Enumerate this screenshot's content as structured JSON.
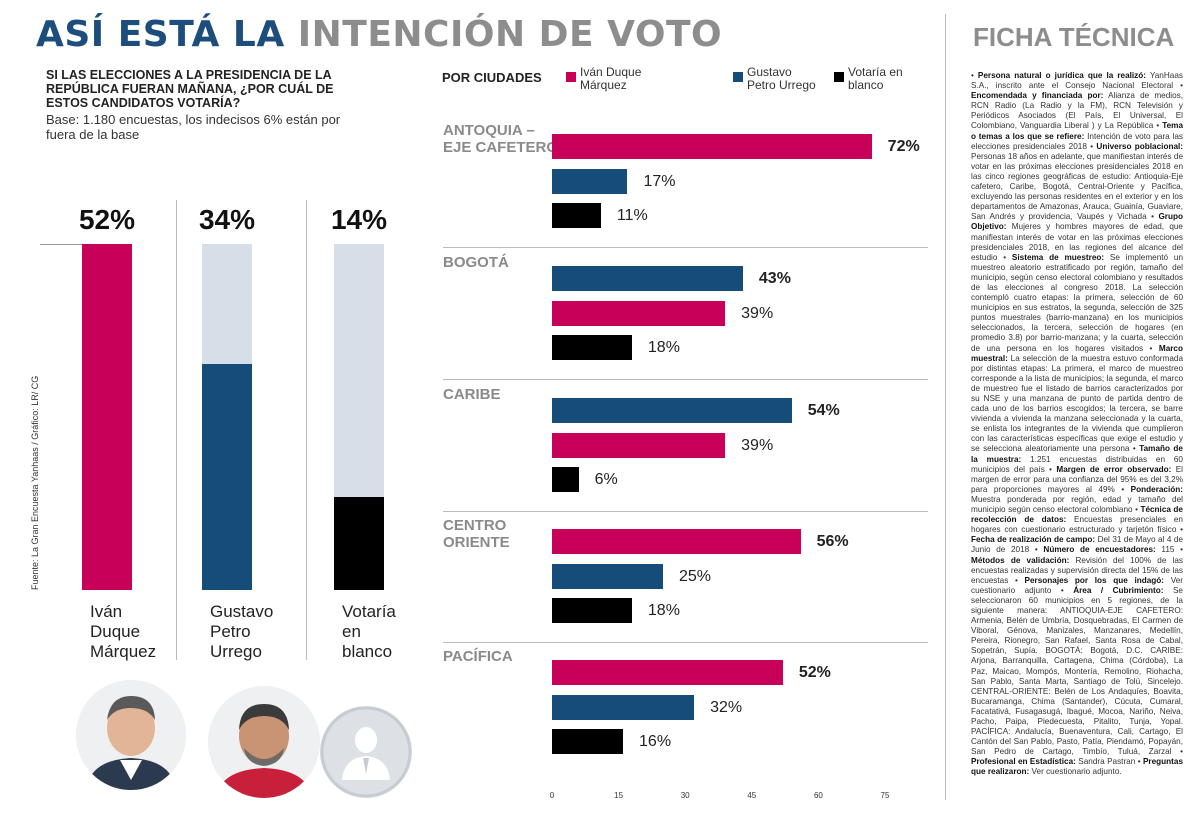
{
  "title": {
    "part1": "ASÍ ESTÁ LA",
    "part2": "INTENCIÓN DE VOTO"
  },
  "question": "SI LAS ELECCIONES A LA PRESIDENCIA DE LA REPÚBLICA FUERAN MAÑANA, ¿POR CUÁL DE ESTOS CANDIDATOS VOTARÍA?",
  "base": "Base: 1.180 encuestas, los indecisos 6% están por fuera de la base",
  "source": "Fuente: La Gran Encuesta Yanhaas / Gráfico: LR/ CG",
  "colors": {
    "duque": "#c8005a",
    "petro": "#154c79",
    "blanco": "#000000",
    "track": "#d8dee7"
  },
  "chart_data": [
    {
      "type": "bar",
      "title": "SI LAS ELECCIONES A LA PRESIDENCIA DE LA REPÚBLICA FUERAN MAÑANA, ¿POR CUÁL DE ESTOS CANDIDATOS VOTARÍA?",
      "categories": [
        "Iván Duque Márquez",
        "Gustavo Petro Urrego",
        "Votaría en blanco"
      ],
      "values": [
        52,
        34,
        14
      ],
      "labels": [
        "52%",
        "34%",
        "14%"
      ],
      "label_lines": [
        [
          "Iván",
          "Duque",
          "Márquez"
        ],
        [
          "Gustavo",
          "Petro",
          "Urrego"
        ],
        [
          "Votaría",
          "en",
          "blanco"
        ]
      ],
      "ylim": [
        0,
        52
      ]
    },
    {
      "type": "bar",
      "title": "POR CIUDADES",
      "orientation": "horizontal",
      "legend": [
        "Iván Duque Márquez",
        "Gustavo Petro Urrego",
        "Votaría en blanco"
      ],
      "legend_lines": [
        [
          "Iván Duque",
          "Márquez"
        ],
        [
          "Gustavo",
          "Petro Urrego"
        ],
        [
          "Votaría en",
          "blanco"
        ]
      ],
      "xlim": [
        0,
        75
      ],
      "xticks": [
        "0",
        "15",
        "30",
        "45",
        "60",
        "75"
      ],
      "regions": [
        {
          "name_lines": [
            "ANTOQUIA –",
            "EJE CAFETERO"
          ],
          "bars": [
            {
              "series": "duque",
              "value": 72,
              "label": "72%",
              "bold": true
            },
            {
              "series": "petro",
              "value": 17,
              "label": "17%",
              "bold": false
            },
            {
              "series": "blanco",
              "value": 11,
              "label": "11%",
              "bold": false
            }
          ]
        },
        {
          "name_lines": [
            "BOGOTÁ"
          ],
          "bars": [
            {
              "series": "petro",
              "value": 43,
              "label": "43%",
              "bold": true
            },
            {
              "series": "duque",
              "value": 39,
              "label": "39%",
              "bold": false
            },
            {
              "series": "blanco",
              "value": 18,
              "label": "18%",
              "bold": false
            }
          ]
        },
        {
          "name_lines": [
            "CARIBE"
          ],
          "bars": [
            {
              "series": "petro",
              "value": 54,
              "label": "54%",
              "bold": true
            },
            {
              "series": "duque",
              "value": 39,
              "label": "39%",
              "bold": false
            },
            {
              "series": "blanco",
              "value": 6,
              "label": "6%",
              "bold": false
            }
          ]
        },
        {
          "name_lines": [
            "CENTRO",
            "ORIENTE"
          ],
          "bars": [
            {
              "series": "duque",
              "value": 56,
              "label": "56%",
              "bold": true
            },
            {
              "series": "petro",
              "value": 25,
              "label": "25%",
              "bold": false
            },
            {
              "series": "blanco",
              "value": 18,
              "label": "18%",
              "bold": false
            }
          ]
        },
        {
          "name_lines": [
            "PACÍFICA"
          ],
          "bars": [
            {
              "series": "duque",
              "value": 52,
              "label": "52%",
              "bold": true
            },
            {
              "series": "petro",
              "value": 32,
              "label": "32%",
              "bold": false
            },
            {
              "series": "blanco",
              "value": 16,
              "label": "16%",
              "bold": false
            }
          ]
        }
      ]
    }
  ],
  "ficha": {
    "title": "FICHA TÉCNICA",
    "items": [
      {
        "k": "Persona natural o jurídica que la realizó:",
        "v": "YanHaas S.A., inscrito ante el Consejo Nacional Electoral"
      },
      {
        "k": "Encomendada y financiada por:",
        "v": "Alianza de medios, RCN Radio (La Radio y la FM), RCN Televisión y Periódicos Asociados (El País, El Universal, El Colombiano, Vanguardia Liberal ) y La República"
      },
      {
        "k": "Tema o temas a los que se refiere:",
        "v": "Intención de voto para las elecciones presidenciales 2018"
      },
      {
        "k": "Universo poblacional:",
        "v": "Personas 18 años en adelante, que manifiestan interés de votar en las próximas elecciones presidenciales 2018 en las cinco regiones geográficas de estudio: Antioquia-Eje cafetero, Caribe, Bogotá, Central-Oriente y Pacífica, excluyendo las personas residentes en el exterior y en los departamentos de Amazonas, Arauca, Guainía, Guaviare, San Andrés y providencia, Vaupés y Vichada"
      },
      {
        "k": "Grupo Objetivo:",
        "v": "Mujeres y hombres mayores de edad, que manifiestan interés de votar en las próximas elecciones presidenciales 2018, en las regiones del alcance del estudio"
      },
      {
        "k": "Sistema de muestreo:",
        "v": "Se implementó un muestreo aleatorio estratificado por región, tamaño del municipio, según censo electoral colombiano y resultados de las elecciones al congreso 2018. La selección contempló cuatro etapas: la primera, selección de 60 municipios en sus estratos, la segunda, selección de 325 puntos muestrales (barrio-manzana) en los municipios seleccionados, la tercera, selección de hogares (en promedio 3.8) por barrio-manzana; y la cuarta, selección de una persona en los hogares visitados"
      },
      {
        "k": "Marco muestral:",
        "v": "La selección de la muestra estuvo conformada por distintas etapas: La primera, el marco de muestreo corresponde a la lista de municipios; la segunda, el marco de muestreo fue el listado de barrios caracterizados por su NSE y una manzana de punto de partida dentro de cada uno de los barrios escogidos; la tercera, se barre vivienda a vivienda la manzana seleccionada y la cuarta, se enlista los integrantes de la vivienda que cumplieron con las características específicas que exige el estudio y se selecciona aleatoriamente una persona"
      },
      {
        "k": "Tamaño de la muestra:",
        "v": "1.251 encuestas distribuidas en 60 municipios del país"
      },
      {
        "k": "Margen de error observado:",
        "v": "El margen de error para una confianza del 95% es del 3,2% para proporciones mayores al 49%"
      },
      {
        "k": "Ponderación:",
        "v": "Muestra ponderada por región, edad y tamaño del municipio según censo electoral colombiano"
      },
      {
        "k": "Técnica de recolección de datos:",
        "v": "Encuestas presenciales en hogares con cuestionario estructurado y tarjetón físico"
      },
      {
        "k": "Fecha de realización de campo:",
        "v": "Del 31 de Mayo al 4 de Junio de 2018"
      },
      {
        "k": "Número de encuestadores:",
        "v": "115"
      },
      {
        "k": "Métodos de validación:",
        "v": "Revisión del 100% de las encuestas realizadas y supervisión directa del 15% de las encuestas"
      },
      {
        "k": "Personajes por los que indagó:",
        "v": "Ver cuestionario adjunto"
      },
      {
        "k": "Área / Cubrimiento:",
        "v": "Se seleccionaron 60 municipios en 5 regiones, de la siguiente manera: ANTIOQUIA-EJE CAFETERO: Armenia, Belén de Umbría, Dosquebradas, El Carmen de Viboral, Génova, Manizales, Manzanares, Medellín, Pereira, Rionegro, San Rafael, Santa Rosa de Cabal, Sopetrán, Supía. BOGOTÁ: Bogotá, D.C. CARIBE: Arjona, Barranquilla, Cartagena, Chima (Córdoba), La Paz, Maicao, Mompós, Montería, Remolino, Riohacha, San Pablo, Santa Marta, Santiago de Tolú, Sincelejo. CENTRAL-ORIENTE: Belén de Los Andaquíes, Boavita, Bucaramanga, Chima (Santander), Cúcuta, Cumaral, Facatativá, Fusagasugá, Ibagué, Mocoa, Nariño, Neiva, Pacho, Paipa, Piedecuesta, Pitalito, Tunja, Yopal. PACÍFICA: Andalucía, Buenaventura, Cali, Cartago, El Cantón del San Pablo, Pasto, Patía, Piendamó, Popayán, San Pedro de Cartago, Timbío, Tuluá, Zarzal"
      },
      {
        "k": "Profesional en Estadística:",
        "v": "Sandra Pastran"
      },
      {
        "k": "Preguntas que realizaron:",
        "v": "Ver cuestionario adjunto."
      }
    ]
  }
}
